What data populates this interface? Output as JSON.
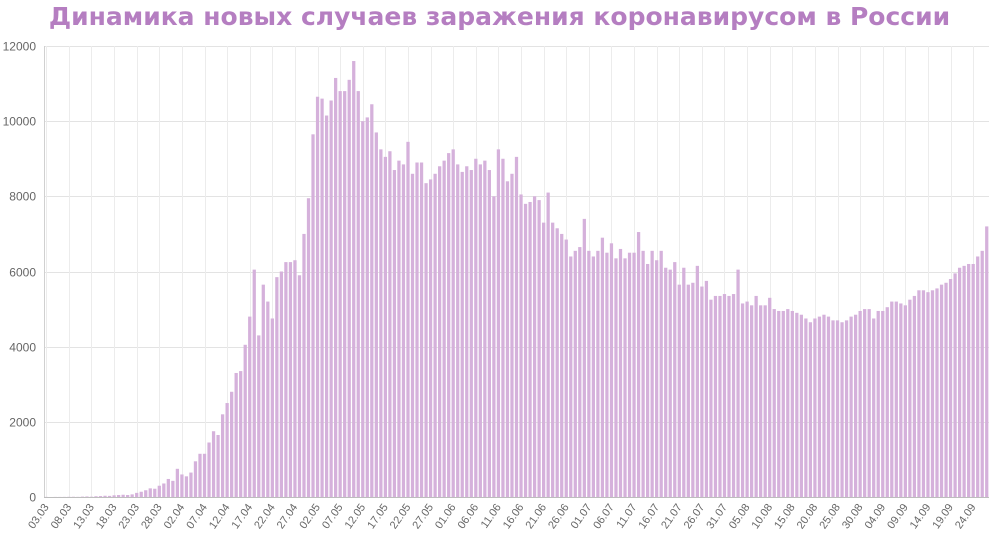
{
  "chart_data": {
    "type": "bar",
    "title": "Динамика новых случаев заражения коронавирусом в России",
    "xlabel": "",
    "ylabel": "",
    "ylim": [
      0,
      12000
    ],
    "y_ticks": [
      0,
      2000,
      4000,
      6000,
      8000,
      10000,
      12000
    ],
    "grid": true,
    "legend": "none",
    "bar_color": "#d5b1db",
    "title_color": "#b57ec1",
    "x_tick_labels": [
      "03.03",
      "08.03",
      "13.03",
      "18.03",
      "23.03",
      "28.03",
      "02.04",
      "07.04",
      "12.04",
      "17.04",
      "22.04",
      "27.04",
      "02.05",
      "07.05",
      "12.05",
      "17.05",
      "22.05",
      "27.05",
      "01.06",
      "06.06",
      "11.06",
      "16.06",
      "21.06",
      "26.06",
      "01.07",
      "06.07",
      "11.07",
      "16.07",
      "21.07",
      "26.07",
      "31.07",
      "05.08",
      "10.08",
      "15.08",
      "20.08",
      "25.08",
      "30.08",
      "04.09",
      "09.09",
      "14.09",
      "19.09",
      "24.09"
    ],
    "start_date": "03.03",
    "values": [
      3,
      0,
      2,
      2,
      3,
      5,
      6,
      4,
      10,
      14,
      8,
      20,
      25,
      33,
      30,
      45,
      52,
      60,
      53,
      70,
      110,
      140,
      180,
      230,
      220,
      300,
      360,
      480,
      430,
      750,
      600,
      550,
      650,
      950,
      1150,
      1150,
      1450,
      1750,
      1650,
      2200,
      2500,
      2800,
      3300,
      3350,
      4050,
      4800,
      6050,
      4300,
      5650,
      5200,
      4750,
      5850,
      6000,
      6250,
      6250,
      6300,
      5900,
      7000,
      7950,
      9650,
      10650,
      10600,
      10150,
      10550,
      11150,
      10800,
      10800,
      11100,
      11600,
      10800,
      10000,
      10100,
      10450,
      9700,
      9250,
      9050,
      9200,
      8700,
      8950,
      8850,
      9450,
      8600,
      8900,
      8900,
      8350,
      8450,
      8600,
      8800,
      8950,
      9150,
      9250,
      8850,
      8650,
      8800,
      8700,
      9000,
      8850,
      8950,
      8700,
      8000,
      9250,
      9000,
      8400,
      8600,
      9050,
      8050,
      7800,
      7850,
      8000,
      7900,
      7300,
      8100,
      7300,
      7150,
      7000,
      6850,
      6400,
      6550,
      6650,
      7400,
      6550,
      6400,
      6550,
      6900,
      6500,
      6750,
      6350,
      6600,
      6350,
      6500,
      6500,
      7050,
      6550,
      6200,
      6550,
      6300,
      6550,
      6100,
      6050,
      6250,
      5650,
      6100,
      5650,
      5700,
      6150,
      5600,
      5750,
      5250,
      5350,
      5350,
      5400,
      5350,
      5400,
      6050,
      5150,
      5200,
      5100,
      5350,
      5100,
      5100,
      5300,
      5000,
      4950,
      4950,
      5000,
      4950,
      4900,
      4850,
      4750,
      4650,
      4750,
      4800,
      4850,
      4800,
      4700,
      4700,
      4650,
      4700,
      4800,
      4850,
      4950,
      5000,
      5000,
      4750,
      4950,
      4950,
      5050,
      5200,
      5200,
      5150,
      5100,
      5250,
      5350,
      5500,
      5500,
      5450,
      5500,
      5550,
      5650,
      5700,
      5800,
      5950,
      6100,
      6150,
      6200,
      6200,
      6400,
      6550,
      7200
    ]
  }
}
